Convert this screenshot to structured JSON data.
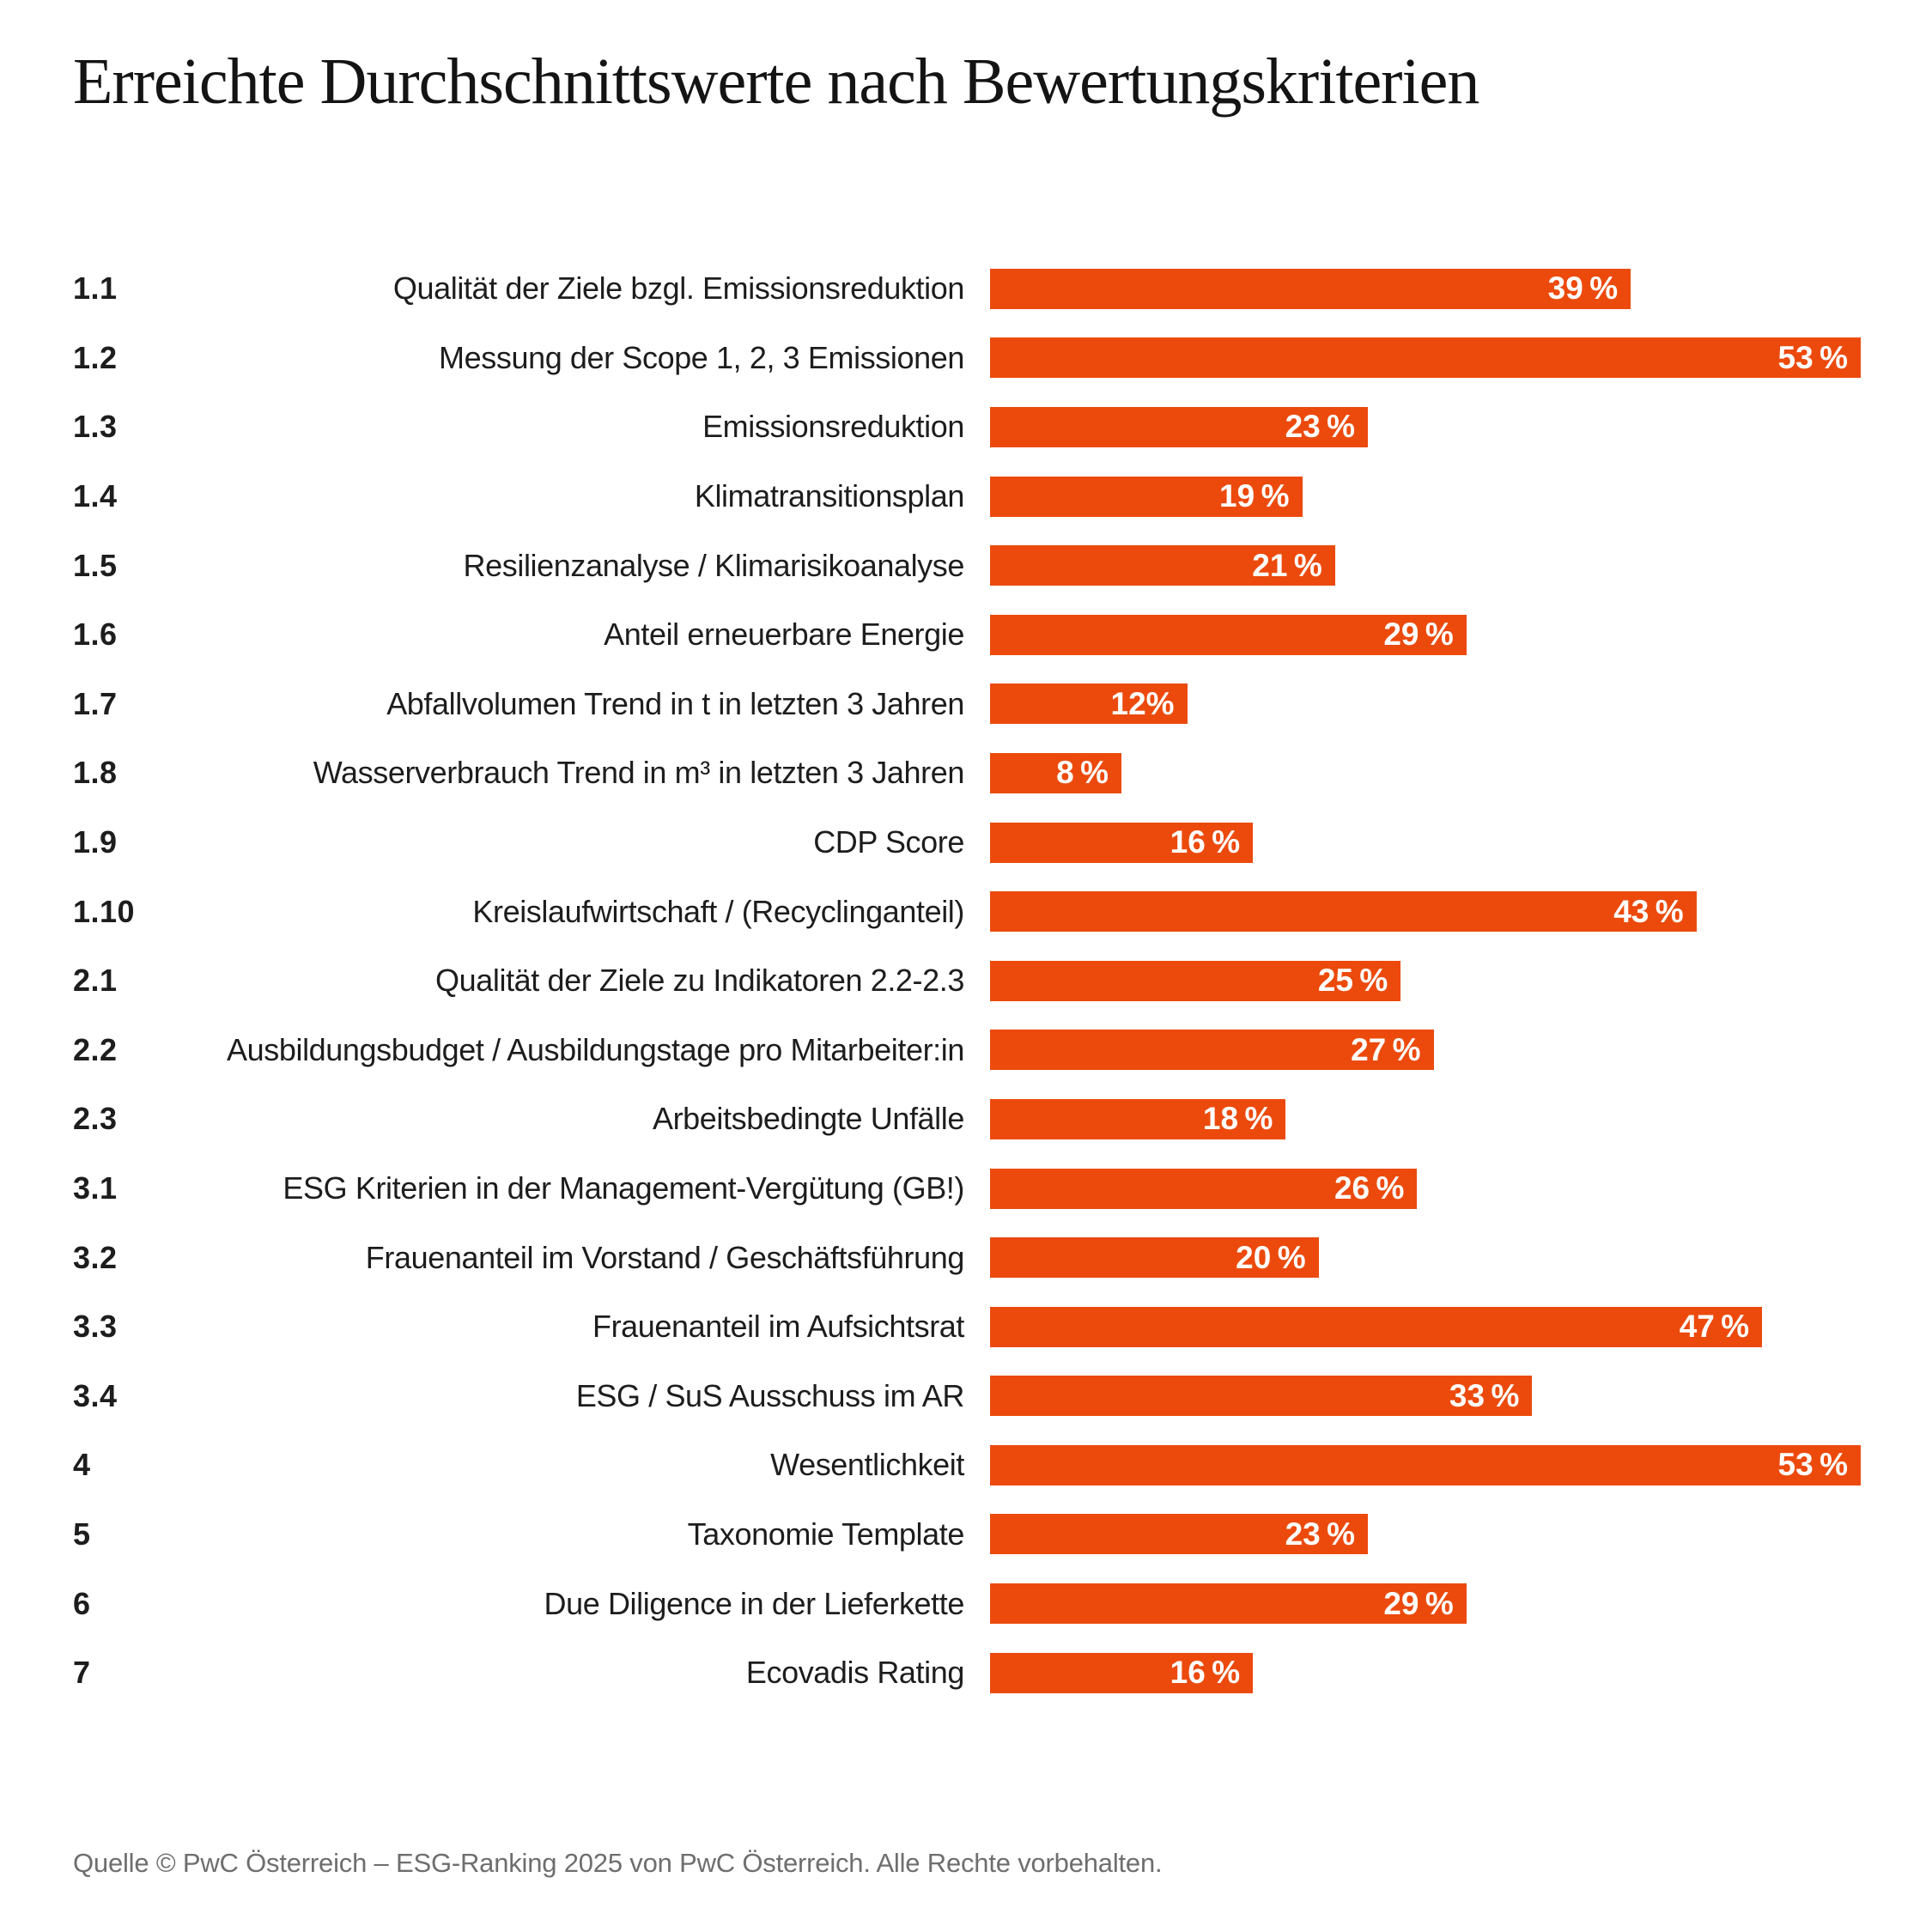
{
  "title": "Erreichte Durchschnittswerte nach Bewertungskriterien",
  "footer": "Quelle © PwC Österreich – ESG-Ranking 2025 von PwC Österreich. Alle Rechte vorbehalten.",
  "accent_color": "#EC4A0C",
  "chart_data": {
    "type": "bar",
    "orientation": "horizontal",
    "title": "Erreichte Durchschnittswerte nach Bewertungskriterien",
    "xlabel": "",
    "ylabel": "",
    "unit": "%",
    "xlim": [
      0,
      53
    ],
    "grid": false,
    "legend": false,
    "bar_color": "#EC4A0C",
    "value_labels_inside_bars": true,
    "codes": [
      "1.1",
      "1.2",
      "1.3",
      "1.4",
      "1.5",
      "1.6",
      "1.7",
      "1.8",
      "1.9",
      "1.10",
      "2.1",
      "2.2",
      "2.3",
      "3.1",
      "3.2",
      "3.3",
      "3.4",
      "4",
      "5",
      "6",
      "7"
    ],
    "categories": [
      "Qualität der Ziele bzgl. Emissionsreduktion",
      "Messung der Scope 1, 2, 3 Emissionen",
      "Emissionsreduktion",
      "Klimatransitionsplan",
      "Resilienzanalyse / Klimarisikoanalyse",
      "Anteil erneuerbare Energie",
      "Abfallvolumen Trend in t in letzten 3 Jahren",
      "Wasserverbrauch Trend in m³ in letzten 3 Jahren",
      "CDP Score",
      "Kreislaufwirtschaft / (Recyclinganteil)",
      "Qualität der Ziele zu Indikatoren 2.2-2.3",
      "Ausbildungsbudget / Ausbildungstage pro Mitarbeiter:in",
      "Arbeitsbedingte Unfälle",
      "ESG Kriterien in der Management-Vergütung (GB!)",
      "Frauenanteil im Vorstand / Geschäftsführung",
      "Frauenanteil im Aufsichtsrat",
      "ESG / SuS Ausschuss im AR",
      "Wesentlichkeit",
      "Taxonomie Template",
      "Due Diligence in der Lieferkette",
      "Ecovadis Rating"
    ],
    "values": [
      39,
      53,
      23,
      19,
      21,
      29,
      12,
      8,
      16,
      43,
      25,
      27,
      18,
      26,
      20,
      47,
      33,
      53,
      23,
      29,
      16
    ],
    "display_values": [
      "39 %",
      "53 %",
      "23 %",
      "19 %",
      "21 %",
      "29 %",
      "12%",
      "8 %",
      "16 %",
      "43 %",
      "25 %",
      "27 %",
      "18 %",
      "26 %",
      "20 %",
      "47 %",
      "33 %",
      "53 %",
      "23 %",
      "29 %",
      "16 %"
    ]
  }
}
